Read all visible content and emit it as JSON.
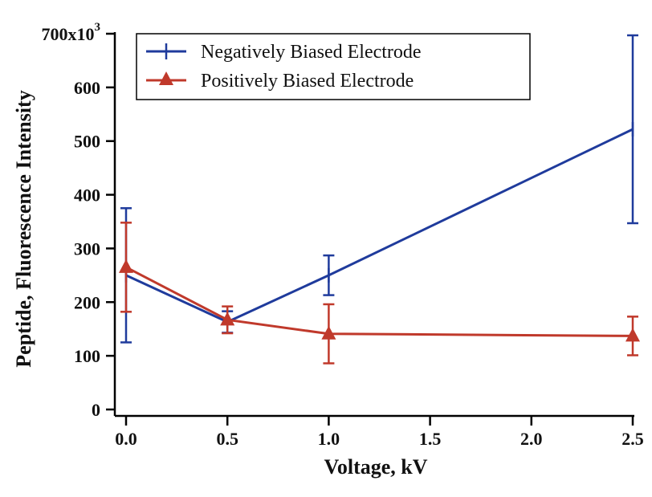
{
  "chart_data": {
    "type": "line",
    "xlabel": "Voltage, kV",
    "ylabel": "Peptide, Fluorescence Intensity",
    "xlim": [
      0,
      2.5
    ],
    "ylim": [
      0,
      700000
    ],
    "x_ticks": [
      0,
      0.5,
      1.0,
      1.5,
      2.0,
      2.5
    ],
    "x_tick_labels": [
      "0.0",
      "0.5",
      "1.0",
      "1.5",
      "2.0",
      "2.5"
    ],
    "y_ticks": [
      0,
      100000,
      200000,
      300000,
      400000,
      500000,
      600000,
      700000
    ],
    "y_tick_labels": [
      "0",
      "100",
      "200",
      "300",
      "400",
      "500",
      "600",
      "700x10"
    ],
    "y_multiplier_exponent": "3",
    "grid": false,
    "legend_position": "top-left",
    "series": [
      {
        "name": "Negatively Biased Electrode",
        "color": "#1f3b9c",
        "marker": "plus",
        "x": [
          0,
          0.5,
          1.0,
          2.5
        ],
        "y": [
          250000,
          163000,
          250000,
          522000
        ],
        "err": [
          125000,
          20000,
          37000,
          175000
        ]
      },
      {
        "name": "Positively Biased Electrode",
        "color": "#c0392b",
        "marker": "triangle",
        "x": [
          0,
          0.5,
          1.0,
          2.5
        ],
        "y": [
          265000,
          167000,
          141000,
          137000
        ],
        "err": [
          83000,
          25000,
          55000,
          36000
        ]
      }
    ]
  }
}
